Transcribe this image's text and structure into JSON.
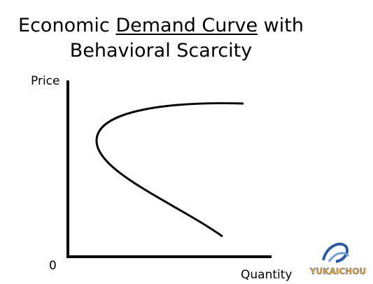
{
  "title": {
    "before": "Economic ",
    "underlined": "Demand Curve",
    "after": " with",
    "line2": "Behavioral Scarcity"
  },
  "axes": {
    "y_label": "Price",
    "x_label": "Quantity",
    "origin": "0"
  },
  "logo": {
    "text": "YUKAICHOU"
  }
}
